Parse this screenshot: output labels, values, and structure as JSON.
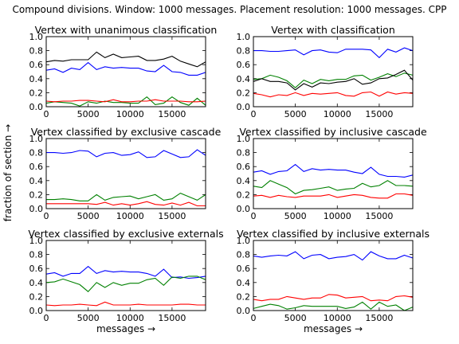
{
  "suptitle": "Compound divisions. Window: 1000 messages. Placement resolution: 1000 messages. CPP",
  "shared_ylabel": "fraction of section →",
  "chart_data": [
    {
      "type": "line",
      "title": "Vertex with unanimous classification",
      "xlabel": "",
      "ylabel": "",
      "xlim": [
        0,
        19000
      ],
      "ylim": [
        0,
        1.0
      ],
      "x": [
        0,
        1000,
        2000,
        3000,
        4000,
        5000,
        6000,
        7000,
        8000,
        9000,
        10000,
        11000,
        12000,
        13000,
        14000,
        15000,
        16000,
        17000,
        18000,
        19000
      ],
      "series": [
        {
          "color": "#000000",
          "values": [
            0.64,
            0.66,
            0.65,
            0.67,
            0.67,
            0.67,
            0.78,
            0.7,
            0.75,
            0.7,
            0.71,
            0.72,
            0.66,
            0.66,
            0.68,
            0.72,
            0.65,
            0.61,
            0.57,
            0.64
          ]
        },
        {
          "color": "#0000ff",
          "values": [
            0.52,
            0.54,
            0.49,
            0.55,
            0.53,
            0.63,
            0.53,
            0.57,
            0.55,
            0.56,
            0.55,
            0.55,
            0.51,
            0.5,
            0.59,
            0.5,
            0.49,
            0.45,
            0.45,
            0.49
          ]
        },
        {
          "color": "#008000",
          "values": [
            0.05,
            0.07,
            0.06,
            0.05,
            0.01,
            0.07,
            0.05,
            0.08,
            0.06,
            0.06,
            0.05,
            0.05,
            0.14,
            0.03,
            0.05,
            0.14,
            0.06,
            0.02,
            0.12,
            0.02
          ]
        },
        {
          "color": "#ff0000",
          "values": [
            0.08,
            0.07,
            0.08,
            0.08,
            0.09,
            0.09,
            0.08,
            0.07,
            0.1,
            0.07,
            0.07,
            0.08,
            0.08,
            0.1,
            0.08,
            0.08,
            0.08,
            0.07,
            0.07,
            0.08
          ]
        }
      ]
    },
    {
      "type": "line",
      "title": "Vertex with classification",
      "xlabel": "",
      "ylabel": "",
      "xlim": [
        0,
        19000
      ],
      "ylim": [
        0,
        1.0
      ],
      "x": [
        0,
        1000,
        2000,
        3000,
        4000,
        5000,
        6000,
        7000,
        8000,
        9000,
        10000,
        11000,
        12000,
        13000,
        14000,
        15000,
        16000,
        17000,
        18000,
        19000
      ],
      "series": [
        {
          "color": "#0000ff",
          "values": [
            0.8,
            0.8,
            0.79,
            0.79,
            0.8,
            0.81,
            0.74,
            0.8,
            0.81,
            0.78,
            0.77,
            0.82,
            0.82,
            0.82,
            0.81,
            0.7,
            0.82,
            0.78,
            0.84,
            0.8
          ]
        },
        {
          "color": "#008000",
          "values": [
            0.39,
            0.4,
            0.45,
            0.42,
            0.37,
            0.27,
            0.38,
            0.33,
            0.39,
            0.37,
            0.39,
            0.39,
            0.44,
            0.45,
            0.38,
            0.42,
            0.47,
            0.43,
            0.48,
            0.45
          ]
        },
        {
          "color": "#000000",
          "values": [
            0.36,
            0.4,
            0.36,
            0.36,
            0.34,
            0.24,
            0.33,
            0.28,
            0.34,
            0.33,
            0.35,
            0.36,
            0.4,
            0.32,
            0.34,
            0.4,
            0.41,
            0.46,
            0.52,
            0.38
          ]
        },
        {
          "color": "#ff0000",
          "values": [
            0.19,
            0.17,
            0.14,
            0.17,
            0.16,
            0.2,
            0.16,
            0.19,
            0.18,
            0.19,
            0.2,
            0.16,
            0.15,
            0.2,
            0.21,
            0.15,
            0.21,
            0.18,
            0.2,
            0.19
          ]
        }
      ]
    },
    {
      "type": "line",
      "title": "Vertex classified by exclusive cascade",
      "xlabel": "",
      "ylabel": "",
      "xlim": [
        0,
        19000
      ],
      "ylim": [
        0,
        1.0
      ],
      "x": [
        0,
        1000,
        2000,
        3000,
        4000,
        5000,
        6000,
        7000,
        8000,
        9000,
        10000,
        11000,
        12000,
        13000,
        14000,
        15000,
        16000,
        17000,
        18000,
        19000
      ],
      "series": [
        {
          "color": "#0000ff",
          "values": [
            0.8,
            0.8,
            0.79,
            0.8,
            0.83,
            0.82,
            0.74,
            0.79,
            0.8,
            0.76,
            0.77,
            0.81,
            0.73,
            0.74,
            0.83,
            0.78,
            0.73,
            0.74,
            0.84,
            0.76
          ]
        },
        {
          "color": "#008000",
          "values": [
            0.13,
            0.13,
            0.14,
            0.13,
            0.11,
            0.11,
            0.2,
            0.12,
            0.16,
            0.17,
            0.18,
            0.14,
            0.17,
            0.2,
            0.12,
            0.14,
            0.22,
            0.17,
            0.12,
            0.2
          ]
        },
        {
          "color": "#ff0000",
          "values": [
            0.07,
            0.07,
            0.07,
            0.07,
            0.07,
            0.07,
            0.06,
            0.09,
            0.05,
            0.07,
            0.05,
            0.07,
            0.1,
            0.06,
            0.05,
            0.08,
            0.05,
            0.09,
            0.04,
            0.04
          ]
        }
      ]
    },
    {
      "type": "line",
      "title": "Vertex classified by inclusive cascade",
      "xlabel": "",
      "ylabel": "",
      "xlim": [
        0,
        19000
      ],
      "ylim": [
        0,
        1.0
      ],
      "x": [
        0,
        1000,
        2000,
        3000,
        4000,
        5000,
        6000,
        7000,
        8000,
        9000,
        10000,
        11000,
        12000,
        13000,
        14000,
        15000,
        16000,
        17000,
        18000,
        19000
      ],
      "series": [
        {
          "color": "#0000ff",
          "values": [
            0.52,
            0.54,
            0.49,
            0.53,
            0.54,
            0.63,
            0.53,
            0.57,
            0.55,
            0.56,
            0.55,
            0.55,
            0.52,
            0.5,
            0.59,
            0.49,
            0.46,
            0.46,
            0.45,
            0.48
          ]
        },
        {
          "color": "#008000",
          "values": [
            0.32,
            0.3,
            0.4,
            0.35,
            0.3,
            0.21,
            0.26,
            0.27,
            0.29,
            0.31,
            0.26,
            0.28,
            0.29,
            0.36,
            0.31,
            0.33,
            0.4,
            0.33,
            0.33,
            0.32
          ]
        },
        {
          "color": "#ff0000",
          "values": [
            0.18,
            0.19,
            0.16,
            0.19,
            0.17,
            0.16,
            0.18,
            0.18,
            0.18,
            0.2,
            0.16,
            0.18,
            0.2,
            0.19,
            0.16,
            0.15,
            0.15,
            0.21,
            0.21,
            0.19
          ]
        }
      ]
    },
    {
      "type": "line",
      "title": "Vertex classified by exclusive externals",
      "xlabel": "messages →",
      "ylabel": "",
      "xlim": [
        0,
        19000
      ],
      "ylim": [
        0,
        1.0
      ],
      "x": [
        0,
        1000,
        2000,
        3000,
        4000,
        5000,
        6000,
        7000,
        8000,
        9000,
        10000,
        11000,
        12000,
        13000,
        14000,
        15000,
        16000,
        17000,
        18000,
        19000
      ],
      "series": [
        {
          "color": "#0000ff",
          "values": [
            0.52,
            0.54,
            0.49,
            0.53,
            0.53,
            0.63,
            0.53,
            0.57,
            0.55,
            0.56,
            0.55,
            0.55,
            0.53,
            0.49,
            0.59,
            0.47,
            0.48,
            0.46,
            0.47,
            0.49
          ]
        },
        {
          "color": "#008000",
          "values": [
            0.4,
            0.41,
            0.45,
            0.41,
            0.37,
            0.27,
            0.4,
            0.33,
            0.4,
            0.36,
            0.39,
            0.39,
            0.44,
            0.46,
            0.36,
            0.48,
            0.46,
            0.49,
            0.49,
            0.44
          ]
        },
        {
          "color": "#ff0000",
          "values": [
            0.08,
            0.07,
            0.08,
            0.08,
            0.09,
            0.08,
            0.07,
            0.12,
            0.08,
            0.08,
            0.08,
            0.09,
            0.08,
            0.08,
            0.08,
            0.08,
            0.09,
            0.09,
            0.08,
            0.08
          ]
        }
      ]
    },
    {
      "type": "line",
      "title": "Vertex classified by inclusive externals",
      "xlabel": "messages →",
      "ylabel": "",
      "xlim": [
        0,
        19000
      ],
      "ylim": [
        0,
        1.0
      ],
      "x": [
        0,
        1000,
        2000,
        3000,
        4000,
        5000,
        6000,
        7000,
        8000,
        9000,
        10000,
        11000,
        12000,
        13000,
        14000,
        15000,
        16000,
        17000,
        18000,
        19000
      ],
      "series": [
        {
          "color": "#0000ff",
          "values": [
            0.78,
            0.76,
            0.78,
            0.79,
            0.78,
            0.84,
            0.74,
            0.79,
            0.8,
            0.74,
            0.76,
            0.77,
            0.8,
            0.72,
            0.84,
            0.78,
            0.74,
            0.74,
            0.79,
            0.75
          ]
        },
        {
          "color": "#ff0000",
          "values": [
            0.16,
            0.14,
            0.16,
            0.16,
            0.2,
            0.18,
            0.16,
            0.18,
            0.18,
            0.23,
            0.22,
            0.18,
            0.19,
            0.2,
            0.14,
            0.15,
            0.14,
            0.2,
            0.21,
            0.19
          ]
        },
        {
          "color": "#008000",
          "values": [
            0.03,
            0.06,
            0.09,
            0.07,
            0.02,
            0.04,
            0.07,
            0.06,
            0.06,
            0.06,
            0.06,
            0.03,
            0.05,
            0.12,
            0.02,
            0.12,
            0.06,
            0.08,
            0.0,
            0.05
          ]
        }
      ]
    }
  ]
}
